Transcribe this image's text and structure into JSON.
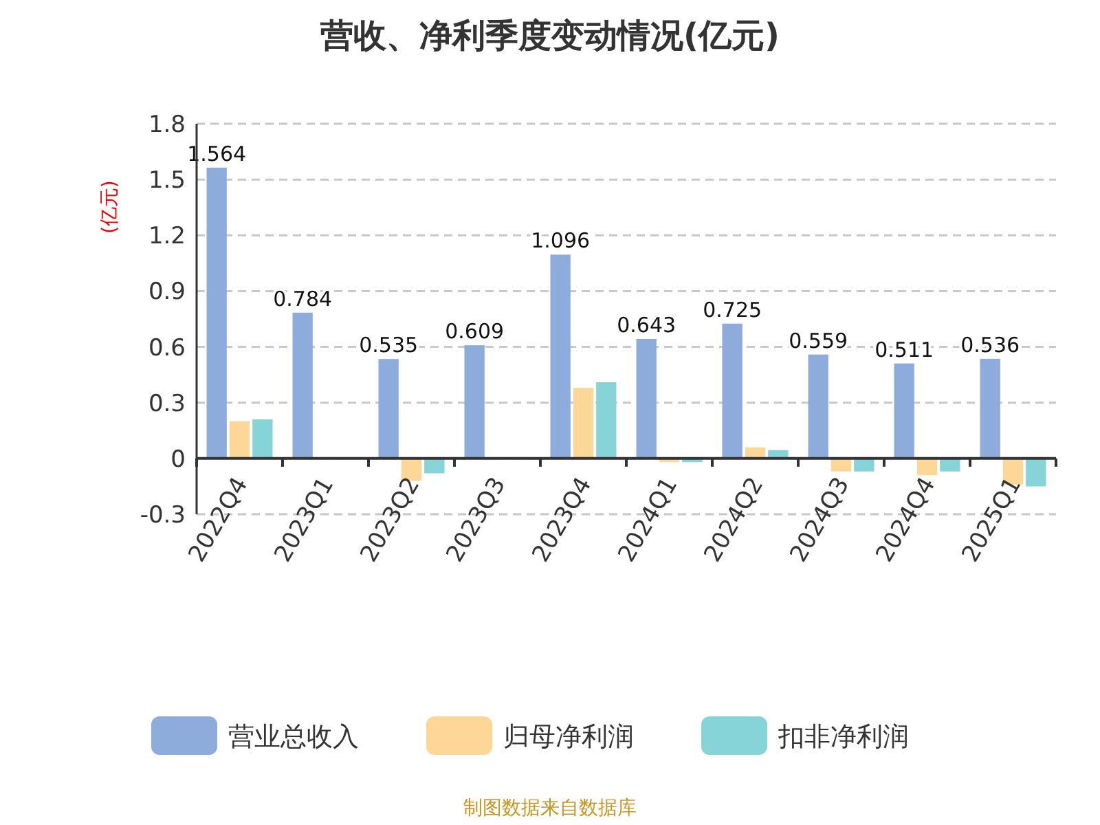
{
  "chart_data": {
    "type": "bar",
    "title": "营收、净利季度变动情况(亿元)",
    "ylabel": "(亿元)",
    "categories": [
      "2022Q4",
      "2023Q1",
      "2023Q2",
      "2023Q3",
      "2023Q4",
      "2024Q1",
      "2024Q2",
      "2024Q3",
      "2024Q4",
      "2025Q1"
    ],
    "series": [
      {
        "name": "营业总收入",
        "color": "#8eacdb",
        "values": [
          1.564,
          0.784,
          0.535,
          0.609,
          1.096,
          0.643,
          0.725,
          0.559,
          0.511,
          0.536
        ],
        "value_labels": [
          "1.564",
          "0.784",
          "0.535",
          "0.609",
          "1.096",
          "0.643",
          "0.725",
          "0.559",
          "0.511",
          "0.536"
        ]
      },
      {
        "name": "归母净利润",
        "color": "#fdd797",
        "values": [
          0.2,
          null,
          -0.12,
          null,
          0.38,
          -0.02,
          0.06,
          -0.07,
          -0.09,
          -0.14
        ]
      },
      {
        "name": "扣非净利润",
        "color": "#86d4d8",
        "values": [
          0.21,
          null,
          -0.08,
          null,
          0.41,
          -0.02,
          0.045,
          -0.07,
          -0.07,
          -0.15
        ]
      }
    ],
    "ylim": [
      -0.3,
      1.8
    ],
    "yticks": [
      -0.3,
      0,
      0.3,
      0.6,
      0.9,
      1.2,
      1.5,
      1.8
    ],
    "grid": "y",
    "legend": "bottom",
    "annotations": [
      "制图数据来自数据库"
    ]
  }
}
